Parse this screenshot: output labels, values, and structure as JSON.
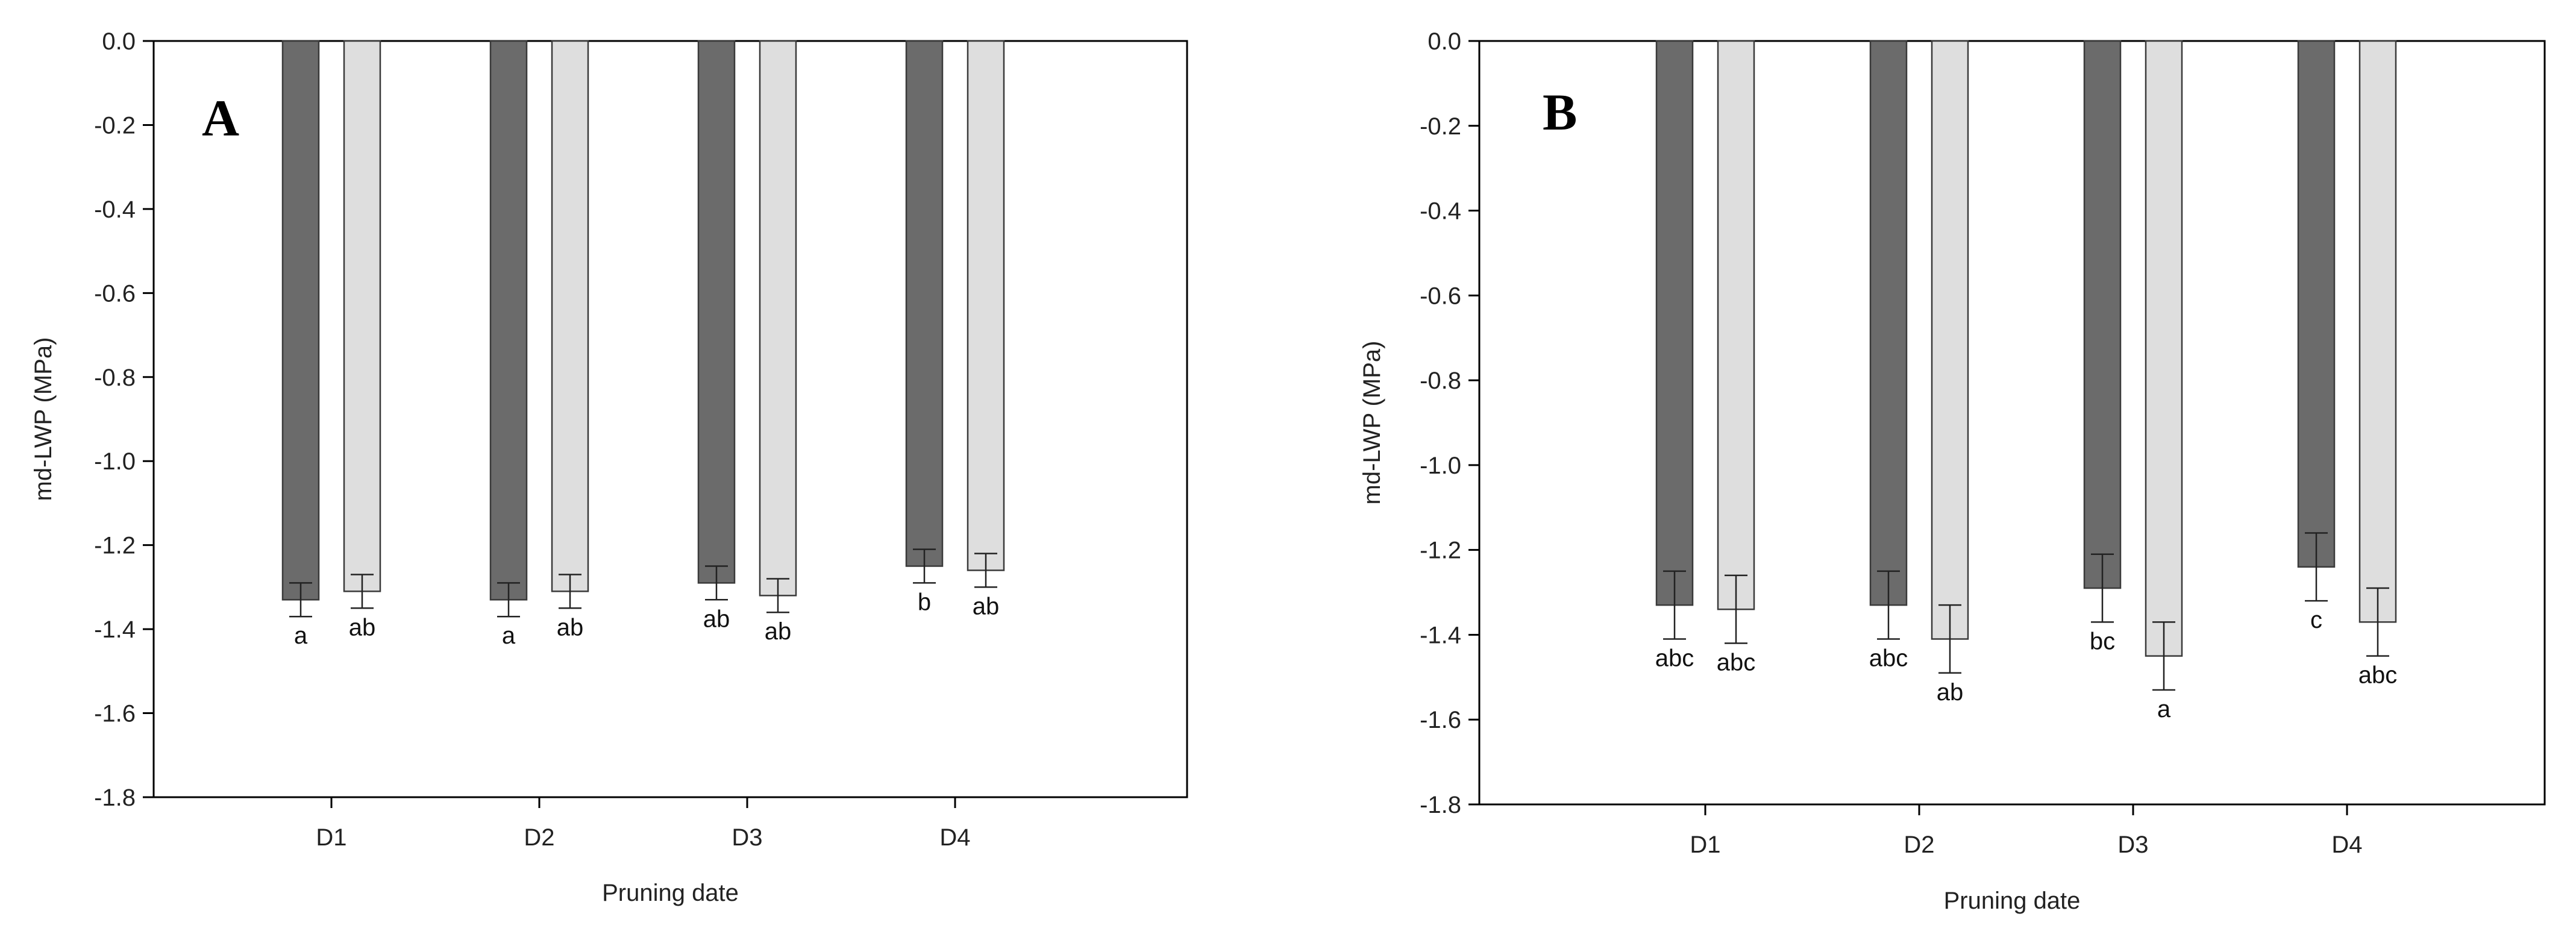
{
  "colors": {
    "series_dark": "#6b6b6b",
    "series_light": "#dedede",
    "bar_stroke": "#3a3a3a",
    "axis": "#000000",
    "error_bar": "#222222"
  },
  "chart_data": [
    {
      "type": "bar",
      "panel_label": "A",
      "xlabel": "Pruning date",
      "ylabel": "md-LWP (MPa)",
      "categories": [
        "D1",
        "D2",
        "D3",
        "D4"
      ],
      "ylim": [
        -1.8,
        0.0
      ],
      "yticks": [
        "0.0",
        "-0.2",
        "-0.4",
        "-0.6",
        "-0.8",
        "-1.0",
        "-1.2",
        "-1.4",
        "-1.6",
        "-1.8"
      ],
      "grid": false,
      "legend": "none",
      "series": [
        {
          "values": [
            -1.33,
            -1.33,
            -1.29,
            -1.25
          ],
          "errors": [
            0.04,
            0.04,
            0.04,
            0.04
          ],
          "labels": [
            "a",
            "a",
            "ab",
            "b"
          ]
        },
        {
          "values": [
            -1.31,
            -1.31,
            -1.32,
            -1.26
          ],
          "errors": [
            0.04,
            0.04,
            0.04,
            0.04
          ],
          "labels": [
            "ab",
            "ab",
            "ab",
            "ab"
          ]
        }
      ]
    },
    {
      "type": "bar",
      "panel_label": "B",
      "xlabel": "Pruning date",
      "ylabel": "md-LWP (MPa)",
      "categories": [
        "D1",
        "D2",
        "D3",
        "D4"
      ],
      "ylim": [
        -1.8,
        0.0
      ],
      "yticks": [
        "0.0",
        "-0.2",
        "-0.4",
        "-0.6",
        "-0.8",
        "-1.0",
        "-1.2",
        "-1.4",
        "-1.6",
        "-1.8"
      ],
      "grid": false,
      "legend": "none",
      "series": [
        {
          "values": [
            -1.33,
            -1.33,
            -1.29,
            -1.24
          ],
          "errors": [
            0.08,
            0.08,
            0.08,
            0.08
          ],
          "labels": [
            "abc",
            "abc",
            "bc",
            "c"
          ]
        },
        {
          "values": [
            -1.34,
            -1.41,
            -1.45,
            -1.37
          ],
          "errors": [
            0.08,
            0.08,
            0.08,
            0.08
          ],
          "labels": [
            "abc",
            "ab",
            "a",
            "abc"
          ]
        }
      ]
    }
  ]
}
